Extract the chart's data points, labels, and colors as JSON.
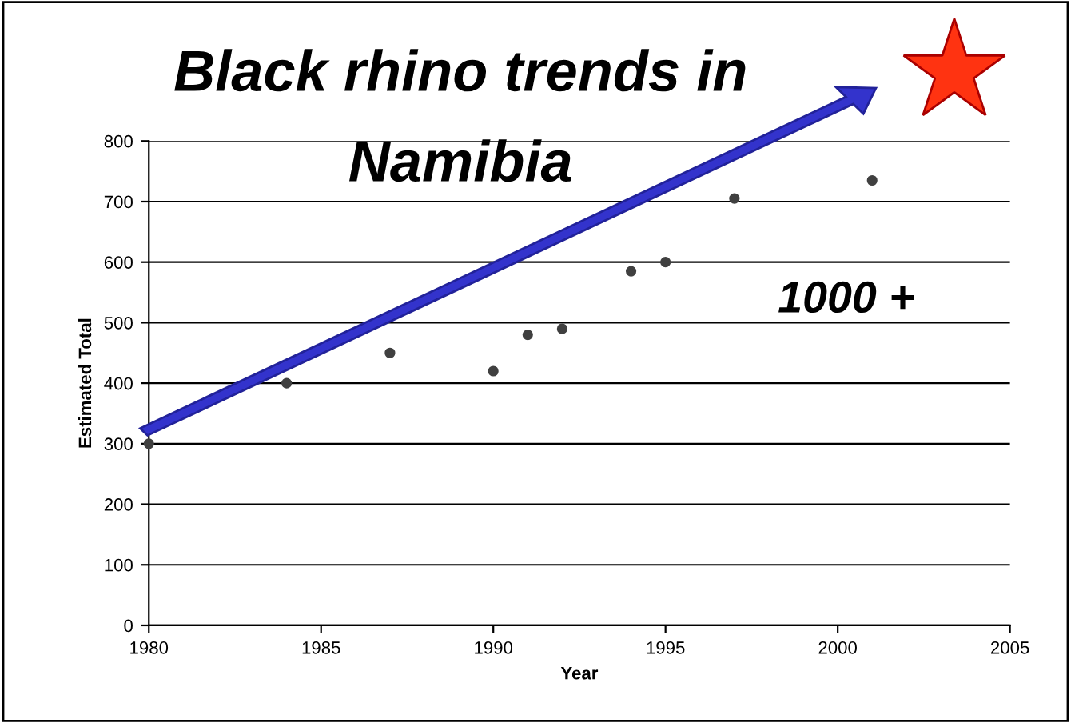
{
  "chart_data": {
    "type": "scatter",
    "title": "Black rhino trends in Namibia",
    "xlabel": "Year",
    "ylabel": "Estimated Total",
    "x": [
      1980,
      1984,
      1987,
      1990,
      1991,
      1992,
      1994,
      1995,
      1997,
      2001
    ],
    "series": [
      {
        "color": "#404040",
        "values": [
          300,
          400,
          450,
          420,
          480,
          490,
          585,
          600,
          705,
          735
        ]
      }
    ],
    "xlim": [
      1980,
      2005
    ],
    "xticks": [
      1980,
      1985,
      1990,
      1995,
      2000,
      2005
    ],
    "ylim": [
      0,
      800
    ],
    "yticks": [
      0,
      100,
      200,
      300,
      400,
      500,
      600,
      700,
      800
    ],
    "grid": "y",
    "marker": "circle",
    "legend": false,
    "annotations": [
      "1000 +"
    ]
  }
}
